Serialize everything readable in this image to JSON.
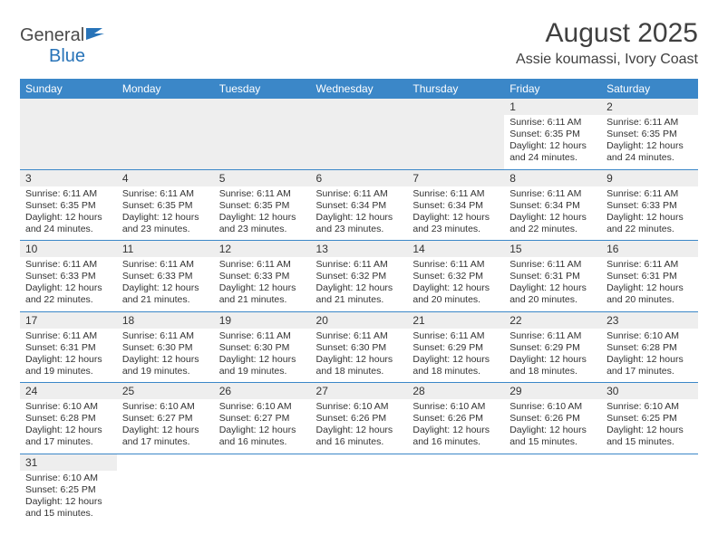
{
  "logo": {
    "general": "General",
    "blue": "Blue"
  },
  "title": "August 2025",
  "location": "Assie koumassi, Ivory Coast",
  "colors": {
    "header_bg": "#3b87c8",
    "header_fg": "#ffffff",
    "shade_bg": "#eeeeee",
    "border": "#3b87c8",
    "text": "#333333",
    "title_text": "#404040",
    "logo_blue": "#2773b8"
  },
  "weekdays": [
    "Sunday",
    "Monday",
    "Tuesday",
    "Wednesday",
    "Thursday",
    "Friday",
    "Saturday"
  ],
  "first_weekday_index": 5,
  "days": {
    "1": {
      "sunrise": "6:11 AM",
      "sunset": "6:35 PM",
      "daylight_h": 12,
      "daylight_m": 24
    },
    "2": {
      "sunrise": "6:11 AM",
      "sunset": "6:35 PM",
      "daylight_h": 12,
      "daylight_m": 24
    },
    "3": {
      "sunrise": "6:11 AM",
      "sunset": "6:35 PM",
      "daylight_h": 12,
      "daylight_m": 24
    },
    "4": {
      "sunrise": "6:11 AM",
      "sunset": "6:35 PM",
      "daylight_h": 12,
      "daylight_m": 23
    },
    "5": {
      "sunrise": "6:11 AM",
      "sunset": "6:35 PM",
      "daylight_h": 12,
      "daylight_m": 23
    },
    "6": {
      "sunrise": "6:11 AM",
      "sunset": "6:34 PM",
      "daylight_h": 12,
      "daylight_m": 23
    },
    "7": {
      "sunrise": "6:11 AM",
      "sunset": "6:34 PM",
      "daylight_h": 12,
      "daylight_m": 23
    },
    "8": {
      "sunrise": "6:11 AM",
      "sunset": "6:34 PM",
      "daylight_h": 12,
      "daylight_m": 22
    },
    "9": {
      "sunrise": "6:11 AM",
      "sunset": "6:33 PM",
      "daylight_h": 12,
      "daylight_m": 22
    },
    "10": {
      "sunrise": "6:11 AM",
      "sunset": "6:33 PM",
      "daylight_h": 12,
      "daylight_m": 22
    },
    "11": {
      "sunrise": "6:11 AM",
      "sunset": "6:33 PM",
      "daylight_h": 12,
      "daylight_m": 21
    },
    "12": {
      "sunrise": "6:11 AM",
      "sunset": "6:33 PM",
      "daylight_h": 12,
      "daylight_m": 21
    },
    "13": {
      "sunrise": "6:11 AM",
      "sunset": "6:32 PM",
      "daylight_h": 12,
      "daylight_m": 21
    },
    "14": {
      "sunrise": "6:11 AM",
      "sunset": "6:32 PM",
      "daylight_h": 12,
      "daylight_m": 20
    },
    "15": {
      "sunrise": "6:11 AM",
      "sunset": "6:31 PM",
      "daylight_h": 12,
      "daylight_m": 20
    },
    "16": {
      "sunrise": "6:11 AM",
      "sunset": "6:31 PM",
      "daylight_h": 12,
      "daylight_m": 20
    },
    "17": {
      "sunrise": "6:11 AM",
      "sunset": "6:31 PM",
      "daylight_h": 12,
      "daylight_m": 19
    },
    "18": {
      "sunrise": "6:11 AM",
      "sunset": "6:30 PM",
      "daylight_h": 12,
      "daylight_m": 19
    },
    "19": {
      "sunrise": "6:11 AM",
      "sunset": "6:30 PM",
      "daylight_h": 12,
      "daylight_m": 19
    },
    "20": {
      "sunrise": "6:11 AM",
      "sunset": "6:30 PM",
      "daylight_h": 12,
      "daylight_m": 18
    },
    "21": {
      "sunrise": "6:11 AM",
      "sunset": "6:29 PM",
      "daylight_h": 12,
      "daylight_m": 18
    },
    "22": {
      "sunrise": "6:11 AM",
      "sunset": "6:29 PM",
      "daylight_h": 12,
      "daylight_m": 18
    },
    "23": {
      "sunrise": "6:10 AM",
      "sunset": "6:28 PM",
      "daylight_h": 12,
      "daylight_m": 17
    },
    "24": {
      "sunrise": "6:10 AM",
      "sunset": "6:28 PM",
      "daylight_h": 12,
      "daylight_m": 17
    },
    "25": {
      "sunrise": "6:10 AM",
      "sunset": "6:27 PM",
      "daylight_h": 12,
      "daylight_m": 17
    },
    "26": {
      "sunrise": "6:10 AM",
      "sunset": "6:27 PM",
      "daylight_h": 12,
      "daylight_m": 16
    },
    "27": {
      "sunrise": "6:10 AM",
      "sunset": "6:26 PM",
      "daylight_h": 12,
      "daylight_m": 16
    },
    "28": {
      "sunrise": "6:10 AM",
      "sunset": "6:26 PM",
      "daylight_h": 12,
      "daylight_m": 16
    },
    "29": {
      "sunrise": "6:10 AM",
      "sunset": "6:26 PM",
      "daylight_h": 12,
      "daylight_m": 15
    },
    "30": {
      "sunrise": "6:10 AM",
      "sunset": "6:25 PM",
      "daylight_h": 12,
      "daylight_m": 15
    },
    "31": {
      "sunrise": "6:10 AM",
      "sunset": "6:25 PM",
      "daylight_h": 12,
      "daylight_m": 15
    }
  },
  "labels": {
    "sunrise_prefix": "Sunrise: ",
    "sunset_prefix": "Sunset: ",
    "daylight_prefix": "Daylight: ",
    "hours_word": " hours",
    "and_word": "and ",
    "minutes_word": " minutes."
  }
}
